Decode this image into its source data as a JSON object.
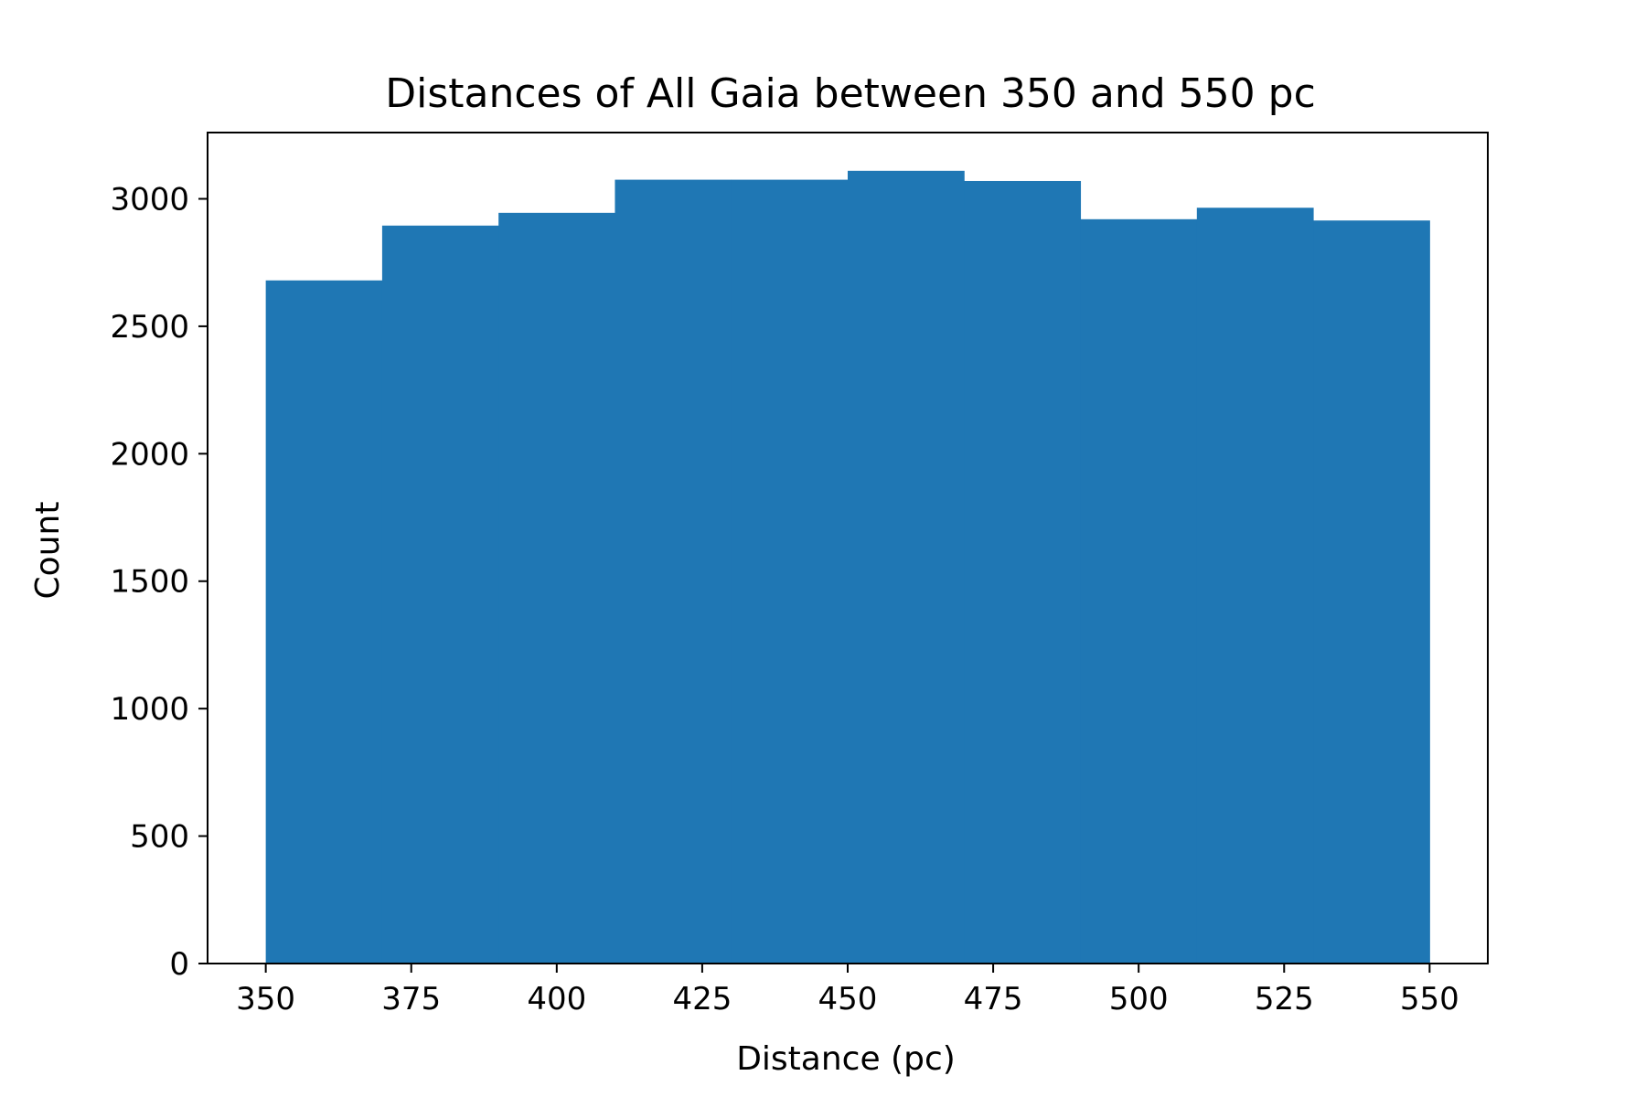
{
  "chart_data": {
    "type": "bar",
    "title": "Distances of All Gaia between 350 and 550 pc",
    "xlabel": "Distance (pc)",
    "ylabel": "Count",
    "bin_edges": [
      350,
      370,
      390,
      410,
      430,
      450,
      470,
      490,
      510,
      530,
      550
    ],
    "values": [
      2680,
      2895,
      2945,
      3075,
      3075,
      3110,
      3070,
      2920,
      2965,
      2915
    ],
    "xlim": [
      340,
      560
    ],
    "ylim": [
      0,
      3260
    ],
    "xticks": [
      350,
      375,
      400,
      425,
      450,
      475,
      500,
      525,
      550
    ],
    "yticks": [
      0,
      500,
      1000,
      1500,
      2000,
      2500,
      3000
    ],
    "bar_color": "#1f77b4",
    "grid": false
  }
}
